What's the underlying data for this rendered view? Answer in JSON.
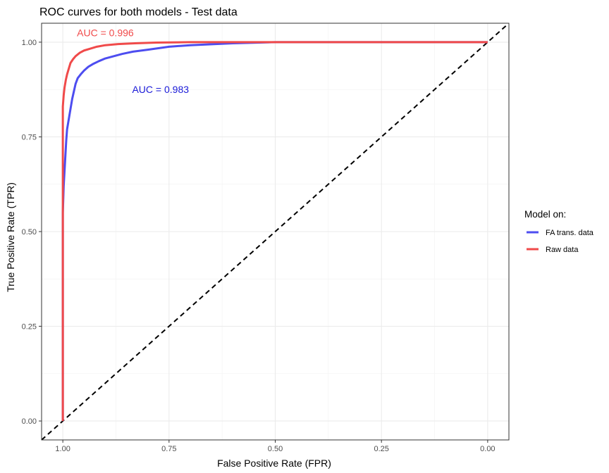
{
  "chart_data": {
    "type": "line",
    "title": "ROC curves for both models - Test data",
    "xlabel": "False Positive Rate (FPR)",
    "ylabel": "True Positive Rate (TPR)",
    "x_reversed": true,
    "xlim": [
      1.05,
      -0.05
    ],
    "ylim": [
      -0.05,
      1.05
    ],
    "x_ticks": [
      1.0,
      0.75,
      0.5,
      0.25,
      0.0
    ],
    "x_tick_labels": [
      "1.00",
      "0.75",
      "0.50",
      "0.25",
      "0.00"
    ],
    "y_ticks": [
      0.0,
      0.25,
      0.5,
      0.75,
      1.0
    ],
    "y_tick_labels": [
      "0.00",
      "0.25",
      "0.50",
      "0.75",
      "1.00"
    ],
    "grid": true,
    "legend": {
      "title": "Model on:",
      "position": "right",
      "entries": [
        "FA trans. data",
        "Raw data"
      ]
    },
    "series": [
      {
        "name": "FA trans. data",
        "color": "#4d4df0",
        "points": [
          [
            1.0,
            0.0
          ],
          [
            1.0,
            0.55
          ],
          [
            0.998,
            0.62
          ],
          [
            0.996,
            0.66
          ],
          [
            0.994,
            0.7
          ],
          [
            0.992,
            0.74
          ],
          [
            0.99,
            0.77
          ],
          [
            0.987,
            0.79
          ],
          [
            0.984,
            0.81
          ],
          [
            0.981,
            0.83
          ],
          [
            0.978,
            0.85
          ],
          [
            0.974,
            0.87
          ],
          [
            0.97,
            0.89
          ],
          [
            0.965,
            0.905
          ],
          [
            0.958,
            0.915
          ],
          [
            0.95,
            0.925
          ],
          [
            0.94,
            0.935
          ],
          [
            0.928,
            0.943
          ],
          [
            0.915,
            0.95
          ],
          [
            0.9,
            0.957
          ],
          [
            0.88,
            0.963
          ],
          [
            0.86,
            0.969
          ],
          [
            0.835,
            0.975
          ],
          [
            0.8,
            0.98
          ],
          [
            0.75,
            0.988
          ],
          [
            0.7,
            0.992
          ],
          [
            0.6,
            0.997
          ],
          [
            0.5,
            1.0
          ],
          [
            0.0,
            1.0
          ]
        ]
      },
      {
        "name": "Raw data",
        "color": "#f04a4a",
        "points": [
          [
            1.0,
            0.0
          ],
          [
            1.0,
            0.83
          ],
          [
            0.998,
            0.86
          ],
          [
            0.996,
            0.88
          ],
          [
            0.993,
            0.9
          ],
          [
            0.99,
            0.915
          ],
          [
            0.986,
            0.93
          ],
          [
            0.982,
            0.945
          ],
          [
            0.976,
            0.955
          ],
          [
            0.97,
            0.963
          ],
          [
            0.96,
            0.972
          ],
          [
            0.95,
            0.978
          ],
          [
            0.935,
            0.983
          ],
          [
            0.92,
            0.988
          ],
          [
            0.9,
            0.992
          ],
          [
            0.87,
            0.995
          ],
          [
            0.83,
            0.997
          ],
          [
            0.78,
            0.999
          ],
          [
            0.7,
            1.0
          ],
          [
            0.0,
            1.0
          ]
        ]
      }
    ],
    "reference_line": {
      "points": [
        [
          1.05,
          -0.05
        ],
        [
          -0.05,
          1.05
        ]
      ],
      "color": "#000000",
      "style": "dashed"
    },
    "annotations": [
      {
        "text": "AUC =  0.996",
        "color": "#f04a4a",
        "x": 0.9,
        "y": 1.025
      },
      {
        "text": "AUC =  0.983",
        "color": "#1a1ad8",
        "x": 0.77,
        "y": 0.875
      }
    ]
  }
}
